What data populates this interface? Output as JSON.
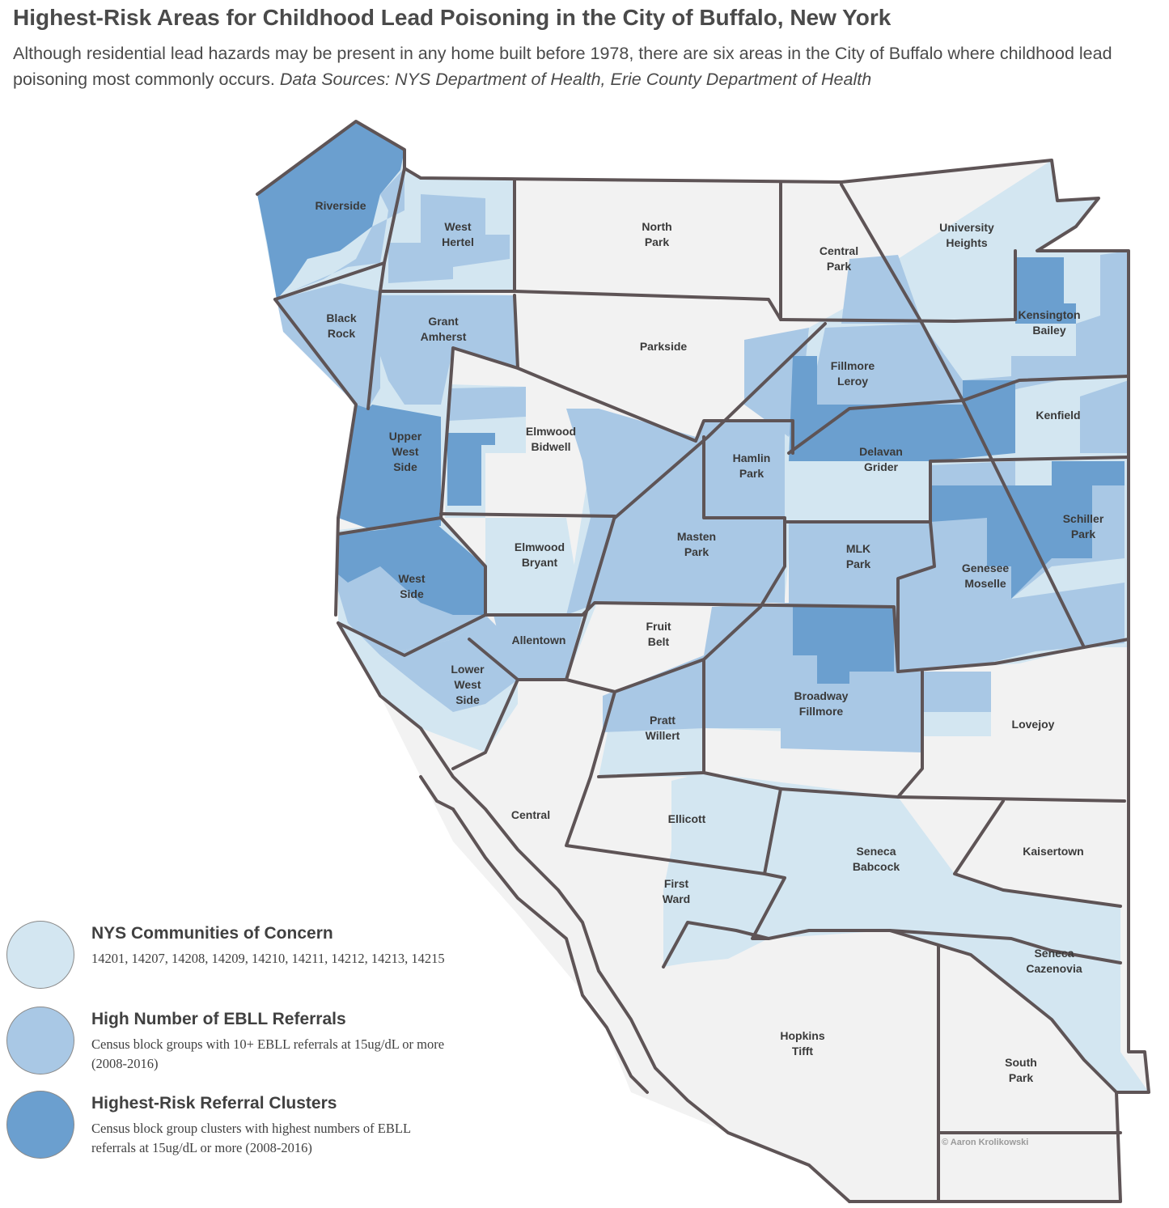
{
  "header": {
    "title": "Highest-Risk Areas for Childhood Lead Poisoning in the City of Buffalo, New York",
    "subtitle": "Although residential lead hazards may be present in any home built before 1978, there are six areas in the City of Buffalo where childhood lead poisoning most commonly occurs.",
    "sources": "Data Sources: NYS Department of Health, Erie County Department of Health"
  },
  "colors": {
    "concern": "#d3e6f1",
    "referrals": "#a9c8e5",
    "clusters": "#6b9fcf",
    "boundary": "#5e5456",
    "basemap": "#f2f2f2"
  },
  "neighborhoods": [
    {
      "id": "riverside",
      "lines": [
        "Riverside"
      ]
    },
    {
      "id": "west-hertel",
      "lines": [
        "West",
        "Hertel"
      ]
    },
    {
      "id": "north-park",
      "lines": [
        "North",
        "Park"
      ]
    },
    {
      "id": "central-park",
      "lines": [
        "Central",
        "Park"
      ]
    },
    {
      "id": "university-heights",
      "lines": [
        "University",
        "Heights"
      ]
    },
    {
      "id": "black-rock",
      "lines": [
        "Black",
        "Rock"
      ]
    },
    {
      "id": "grant-amherst",
      "lines": [
        "Grant",
        "Amherst"
      ]
    },
    {
      "id": "parkside",
      "lines": [
        "Parkside"
      ]
    },
    {
      "id": "kensington-bailey",
      "lines": [
        "Kensington",
        "Bailey"
      ]
    },
    {
      "id": "fillmore-leroy",
      "lines": [
        "Fillmore",
        "Leroy"
      ]
    },
    {
      "id": "kenfield",
      "lines": [
        "Kenfield"
      ]
    },
    {
      "id": "elmwood-bidwell",
      "lines": [
        "Elmwood",
        "Bidwell"
      ]
    },
    {
      "id": "upper-west-side",
      "lines": [
        "Upper",
        "West",
        "Side"
      ]
    },
    {
      "id": "hamlin-park",
      "lines": [
        "Hamlin",
        "Park"
      ]
    },
    {
      "id": "delavan-grider",
      "lines": [
        "Delavan",
        "Grider"
      ]
    },
    {
      "id": "schiller-park",
      "lines": [
        "Schiller",
        "Park"
      ]
    },
    {
      "id": "masten-park",
      "lines": [
        "Masten",
        "Park"
      ]
    },
    {
      "id": "elmwood-bryant",
      "lines": [
        "Elmwood",
        "Bryant"
      ]
    },
    {
      "id": "mlk-park",
      "lines": [
        "MLK",
        "Park"
      ]
    },
    {
      "id": "genesee-moselle",
      "lines": [
        "Genesee",
        "Moselle"
      ]
    },
    {
      "id": "west-side",
      "lines": [
        "West",
        "Side"
      ]
    },
    {
      "id": "allentown",
      "lines": [
        "Allentown"
      ]
    },
    {
      "id": "fruit-belt",
      "lines": [
        "Fruit",
        "Belt"
      ]
    },
    {
      "id": "lower-west-side",
      "lines": [
        "Lower",
        "West",
        "Side"
      ]
    },
    {
      "id": "broadway-fillmore",
      "lines": [
        "Broadway",
        "Fillmore"
      ]
    },
    {
      "id": "pratt-willert",
      "lines": [
        "Pratt",
        "Willert"
      ]
    },
    {
      "id": "lovejoy",
      "lines": [
        "Lovejoy"
      ]
    },
    {
      "id": "central",
      "lines": [
        "Central"
      ]
    },
    {
      "id": "ellicott",
      "lines": [
        "Ellicott"
      ]
    },
    {
      "id": "seneca-babcock",
      "lines": [
        "Seneca",
        "Babcock"
      ]
    },
    {
      "id": "kaisertown",
      "lines": [
        "Kaisertown"
      ]
    },
    {
      "id": "first-ward",
      "lines": [
        "First",
        "Ward"
      ]
    },
    {
      "id": "seneca-cazenovia",
      "lines": [
        "Seneca",
        "Cazenovia"
      ]
    },
    {
      "id": "hopkins-tifft",
      "lines": [
        "Hopkins",
        "Tifft"
      ]
    },
    {
      "id": "south-park",
      "lines": [
        "South",
        "Park"
      ]
    }
  ],
  "legend": [
    {
      "title": "NYS Communities of Concern",
      "desc": "14201, 14207, 14208, 14209, 14210, 14211, 14212, 14213, 14215"
    },
    {
      "title": "High Number of EBLL Referrals",
      "desc": "Census block groups with 10+ EBLL referrals at 15ug/dL or more  (2008-2016)"
    },
    {
      "title": "Highest-Risk Referral Clusters",
      "desc": "Census block group clusters with highest numbers of EBLL referrals at 15ug/dL or more (2008-2016)"
    }
  ],
  "credit": "© Aaron Krolikowski"
}
